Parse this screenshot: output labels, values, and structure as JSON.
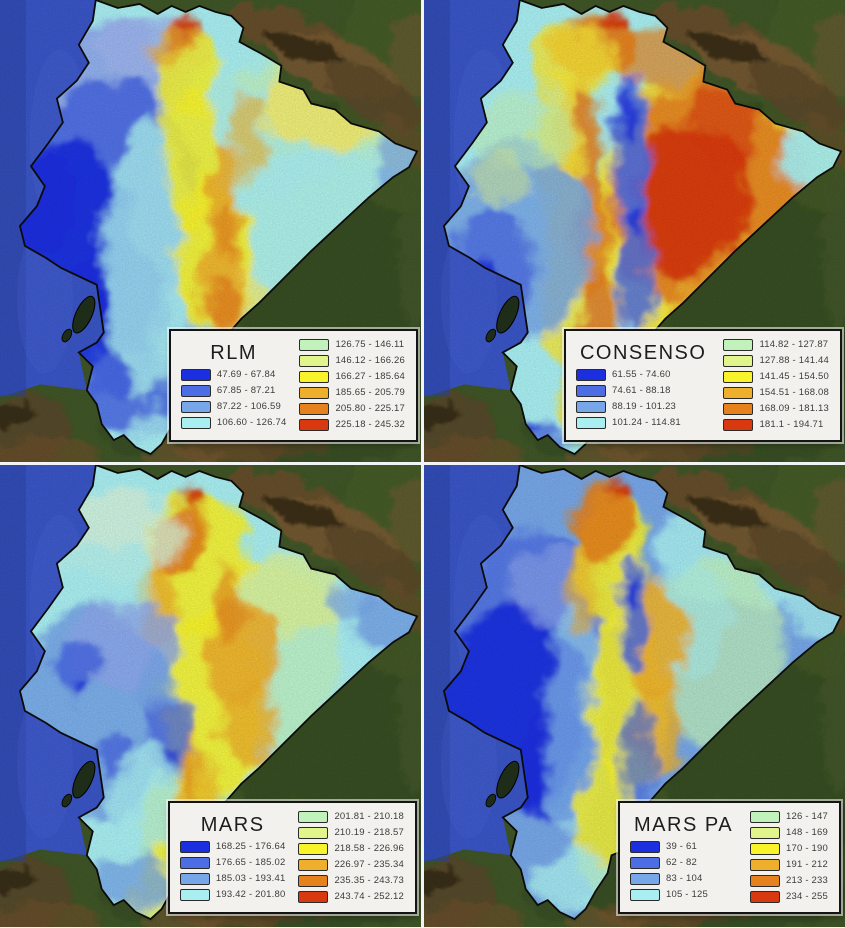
{
  "figure": {
    "description": "Four-panel map mosaic of Ecuador comparing model outputs",
    "rows": 2,
    "cols": 2
  },
  "color_ramp": [
    "#1b2ee0",
    "#4d6de4",
    "#77a7e8",
    "#a9eff2",
    "#c2f2bb",
    "#e2f48c",
    "#f8f32b",
    "#eeb02c",
    "#e5821d",
    "#d8390f"
  ],
  "map_colors": {
    "ocean": "#3a55c6",
    "ocean_deep": "#2c45a8",
    "terrain_green": "#3f5627",
    "terrain_dark": "#34471f",
    "ridge_brown": "#6f4e2b",
    "ridge_light_brown": "#7d5a33",
    "ridge_dark": "#2b2113",
    "country_outline": "#0b0b0b",
    "legend_background": "#f3f1ed",
    "divider": "#f2f3f5"
  },
  "panels": [
    {
      "id": "rlm",
      "title": "RLM",
      "legend": {
        "left": [
          {
            "color_index": 0,
            "label": "47.69 - 67.84"
          },
          {
            "color_index": 1,
            "label": "67.85 - 87.21"
          },
          {
            "color_index": 2,
            "label": "87.22 - 106.59"
          },
          {
            "color_index": 3,
            "label": "106.60 - 126.74"
          }
        ],
        "right": [
          {
            "color_index": 4,
            "label": "126.75 - 146.11"
          },
          {
            "color_index": 5,
            "label": "146.12 - 166.26"
          },
          {
            "color_index": 6,
            "label": "166.27 - 185.64"
          },
          {
            "color_index": 7,
            "label": "185.65 - 205.79"
          },
          {
            "color_index": 8,
            "label": "205.80 - 225.17"
          },
          {
            "color_index": 9,
            "label": "225.18 - 245.32"
          }
        ]
      }
    },
    {
      "id": "consenso",
      "title": "CONSENSO",
      "legend": {
        "left": [
          {
            "color_index": 0,
            "label": "61.55 - 74.60"
          },
          {
            "color_index": 1,
            "label": "74.61 - 88.18"
          },
          {
            "color_index": 2,
            "label": "88.19 - 101.23"
          },
          {
            "color_index": 3,
            "label": "101.24 - 114.81"
          }
        ],
        "right": [
          {
            "color_index": 4,
            "label": "114.82 - 127.87"
          },
          {
            "color_index": 5,
            "label": "127.88 - 141.44"
          },
          {
            "color_index": 6,
            "label": "141.45 - 154.50"
          },
          {
            "color_index": 7,
            "label": "154.51 - 168.08"
          },
          {
            "color_index": 8,
            "label": "168.09 - 181.13"
          },
          {
            "color_index": 9,
            "label": "181.1 - 194.71"
          }
        ]
      }
    },
    {
      "id": "mars",
      "title": "MARS",
      "legend": {
        "left": [
          {
            "color_index": 0,
            "label": "168.25 - 176.64"
          },
          {
            "color_index": 1,
            "label": "176.65 - 185.02"
          },
          {
            "color_index": 2,
            "label": "185.03 - 193.41"
          },
          {
            "color_index": 3,
            "label": "193.42 - 201.80"
          }
        ],
        "right": [
          {
            "color_index": 4,
            "label": "201.81 - 210.18"
          },
          {
            "color_index": 5,
            "label": "210.19 - 218.57"
          },
          {
            "color_index": 6,
            "label": "218.58 - 226.96"
          },
          {
            "color_index": 7,
            "label": "226.97 - 235.34"
          },
          {
            "color_index": 8,
            "label": "235.35 - 243.73"
          },
          {
            "color_index": 9,
            "label": "243.74 - 252.12"
          }
        ]
      }
    },
    {
      "id": "mars-pa",
      "title": "MARS PA",
      "legend": {
        "left": [
          {
            "color_index": 0,
            "label": "39 - 61"
          },
          {
            "color_index": 1,
            "label": "62 - 82"
          },
          {
            "color_index": 2,
            "label": "83 - 104"
          },
          {
            "color_index": 3,
            "label": "105 - 125"
          }
        ],
        "right": [
          {
            "color_index": 4,
            "label": "126 - 147"
          },
          {
            "color_index": 5,
            "label": "148 - 169"
          },
          {
            "color_index": 6,
            "label": "170 - 190"
          },
          {
            "color_index": 7,
            "label": "191 - 212"
          },
          {
            "color_index": 8,
            "label": "213 - 233"
          },
          {
            "color_index": 9,
            "label": "234 - 255"
          }
        ]
      }
    }
  ]
}
